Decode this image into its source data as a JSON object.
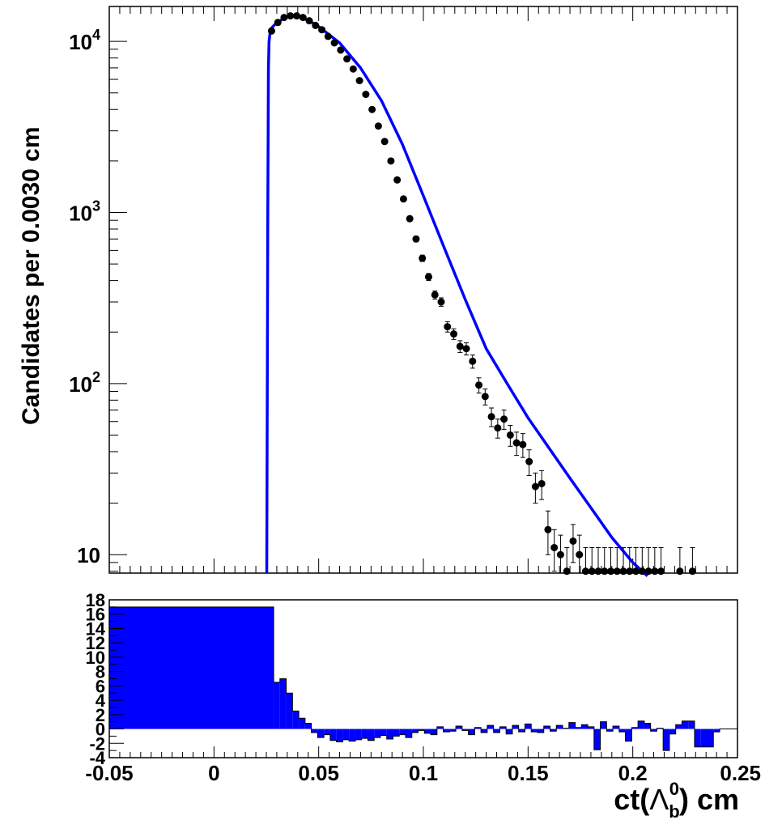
{
  "chart_data": [
    {
      "type": "scatter",
      "ylabel": "Candidates per 0.0030 cm",
      "xlabel": "",
      "y_scale": "log",
      "xlim": [
        -0.05,
        0.25
      ],
      "ylim": [
        7.8,
        16000
      ],
      "y_tick_labels": [
        {
          "base": "10",
          "exp": "4",
          "value": 10000
        },
        {
          "base": "10",
          "exp": "3",
          "value": 1000
        },
        {
          "base": "10",
          "exp": "2",
          "value": 100
        },
        {
          "base": "10",
          "exp": "",
          "value": 10
        }
      ],
      "data_color": "#000000",
      "fit_color": "#0000ff",
      "series": [
        {
          "name": "",
          "kind": "points-with-errors",
          "x": [
            0.0275,
            0.0305,
            0.0335,
            0.0365,
            0.0395,
            0.0425,
            0.0455,
            0.0485,
            0.0515,
            0.0545,
            0.0575,
            0.0605,
            0.0635,
            0.0665,
            0.0695,
            0.0725,
            0.0755,
            0.0785,
            0.0815,
            0.0845,
            0.0875,
            0.0905,
            0.0935,
            0.0965,
            0.0995,
            0.1025,
            0.1055,
            0.1085,
            0.1115,
            0.1145,
            0.1175,
            0.1205,
            0.1235,
            0.1265,
            0.1295,
            0.1325,
            0.1355,
            0.1385,
            0.1415,
            0.1445,
            0.1475,
            0.1505,
            0.1535,
            0.1565,
            0.1595,
            0.1625,
            0.1655,
            0.1685,
            0.1715,
            0.1745,
            0.1775,
            0.1805,
            0.1835,
            0.1865,
            0.1895,
            0.1925,
            0.1955,
            0.1985,
            0.2015,
            0.2045,
            0.2075,
            0.2105,
            0.2135,
            0.2225,
            0.2285
          ],
          "y": [
            11500,
            12900,
            13800,
            14100,
            14100,
            13800,
            13200,
            12400,
            11700,
            10700,
            9800,
            8900,
            7900,
            6900,
            5900,
            4900,
            4000,
            3200,
            2600,
            2000,
            1550,
            1200,
            920,
            700,
            540,
            420,
            330,
            300,
            215,
            195,
            165,
            160,
            135,
            98,
            84,
            64,
            55,
            62,
            50,
            45,
            44,
            35,
            25,
            26,
            14,
            11,
            10,
            8,
            12,
            10,
            8,
            8,
            8,
            8,
            8,
            8,
            8,
            8,
            8,
            8,
            8,
            8,
            8,
            8,
            8
          ],
          "y_err": [
            107,
            114,
            117,
            119,
            119,
            117,
            115,
            111,
            108,
            103,
            99,
            94,
            89,
            83,
            77,
            70,
            63,
            57,
            51,
            45,
            39,
            35,
            30,
            26,
            23,
            20,
            18,
            17,
            15,
            14,
            13,
            13,
            12,
            10,
            9,
            8,
            7,
            8,
            7,
            7,
            7,
            6,
            5,
            5,
            4,
            3,
            3,
            3,
            3,
            3,
            3,
            3,
            3,
            3,
            3,
            3,
            3,
            3,
            3,
            3,
            3,
            3,
            3,
            3,
            3
          ]
        },
        {
          "name": "",
          "kind": "fit-line",
          "x": [
            0.0252,
            0.0257,
            0.026,
            0.0263,
            0.027,
            0.03,
            0.035,
            0.038,
            0.04,
            0.045,
            0.05,
            0.06,
            0.07,
            0.08,
            0.09,
            0.1,
            0.11,
            0.12,
            0.13,
            0.14,
            0.15,
            0.16,
            0.17,
            0.18,
            0.19,
            0.2,
            0.205,
            0.207
          ],
          "y": [
            7.8,
            1000,
            7000,
            10000,
            11800,
            12900,
            13950,
            14150,
            14000,
            13300,
            12200,
            9800,
            7000,
            4500,
            2500,
            1250,
            620,
            310,
            160,
            100,
            63,
            42,
            28,
            18.8,
            12.6,
            9.0,
            7.9,
            7.5
          ]
        }
      ]
    },
    {
      "type": "bar",
      "subtype": "ratio-histogram",
      "xlabel": "ct(Λ₀ᵇ) cm",
      "xlabel_parts": {
        "prefix": "ct(",
        "symbol": "Λ",
        "sub": "b",
        "sup": "0",
        "suffix": ") cm"
      },
      "xlim": [
        -0.05,
        0.25
      ],
      "ylim": [
        -4,
        18
      ],
      "x_tick_labels": [
        "-0.05",
        "0",
        "0.05",
        "0.1",
        "0.15",
        "0.2",
        "0.25"
      ],
      "x_tick_values": [
        -0.05,
        0,
        0.05,
        0.1,
        0.15,
        0.2,
        0.25
      ],
      "y_tick_labels": [
        "18",
        "16",
        "14",
        "12",
        "10",
        "8",
        "6",
        "4",
        "2",
        "0",
        "-2",
        "-4"
      ],
      "y_tick_values": [
        18,
        16,
        14,
        12,
        10,
        8,
        6,
        4,
        2,
        0,
        -2,
        -4
      ],
      "fill_color": "#0000ff",
      "bin_width": 0.003,
      "bins": [
        {
          "x0": -0.05,
          "x1": 0.0285,
          "value": 17.0
        },
        {
          "x0": 0.0285,
          "x1": 0.0315,
          "value": 6.5
        },
        {
          "x0": 0.0315,
          "x1": 0.0345,
          "value": 7.0
        },
        {
          "x0": 0.0345,
          "x1": 0.0375,
          "value": 5.0
        },
        {
          "x0": 0.0375,
          "x1": 0.0405,
          "value": 2.5
        },
        {
          "x0": 0.0405,
          "x1": 0.0435,
          "value": 1.5
        },
        {
          "x0": 0.0435,
          "x1": 0.0465,
          "value": 0.8
        },
        {
          "x0": 0.0465,
          "x1": 0.0495,
          "value": -0.5
        },
        {
          "x0": 0.0495,
          "x1": 0.0525,
          "value": -1.2
        },
        {
          "x0": 0.0525,
          "x1": 0.0555,
          "value": -0.8
        },
        {
          "x0": 0.0555,
          "x1": 0.0585,
          "value": -1.6
        },
        {
          "x0": 0.0585,
          "x1": 0.0615,
          "value": -1.8
        },
        {
          "x0": 0.0615,
          "x1": 0.0645,
          "value": -1.5
        },
        {
          "x0": 0.0645,
          "x1": 0.0675,
          "value": -1.7
        },
        {
          "x0": 0.0675,
          "x1": 0.0705,
          "value": -1.5
        },
        {
          "x0": 0.0705,
          "x1": 0.0735,
          "value": -1.3
        },
        {
          "x0": 0.0735,
          "x1": 0.0765,
          "value": -1.6
        },
        {
          "x0": 0.0765,
          "x1": 0.0795,
          "value": -1.2
        },
        {
          "x0": 0.0795,
          "x1": 0.0825,
          "value": -0.9
        },
        {
          "x0": 0.0825,
          "x1": 0.0855,
          "value": -1.4
        },
        {
          "x0": 0.0855,
          "x1": 0.0885,
          "value": -1.0
        },
        {
          "x0": 0.0885,
          "x1": 0.0915,
          "value": -0.8
        },
        {
          "x0": 0.0915,
          "x1": 0.0945,
          "value": -1.2
        },
        {
          "x0": 0.0945,
          "x1": 0.0975,
          "value": -0.5
        },
        {
          "x0": 0.0975,
          "x1": 0.1005,
          "value": -0.2
        },
        {
          "x0": 0.1005,
          "x1": 0.1035,
          "value": -0.6
        },
        {
          "x0": 0.1035,
          "x1": 0.1065,
          "value": -0.8
        },
        {
          "x0": 0.1065,
          "x1": 0.1095,
          "value": 0.3
        },
        {
          "x0": 0.1095,
          "x1": 0.1125,
          "value": -0.4
        },
        {
          "x0": 0.1125,
          "x1": 0.1155,
          "value": -0.3
        },
        {
          "x0": 0.1155,
          "x1": 0.1185,
          "value": 0.4
        },
        {
          "x0": 0.1185,
          "x1": 0.1215,
          "value": -0.2
        },
        {
          "x0": 0.1215,
          "x1": 0.1245,
          "value": -0.8
        },
        {
          "x0": 0.1245,
          "x1": 0.1275,
          "value": 0.2
        },
        {
          "x0": 0.1275,
          "x1": 0.1305,
          "value": -0.5
        },
        {
          "x0": 0.1305,
          "x1": 0.1335,
          "value": 0.5
        },
        {
          "x0": 0.1335,
          "x1": 0.1365,
          "value": -0.5
        },
        {
          "x0": 0.1365,
          "x1": 0.1395,
          "value": 0.3
        },
        {
          "x0": 0.1395,
          "x1": 0.1425,
          "value": -0.7
        },
        {
          "x0": 0.1425,
          "x1": 0.1455,
          "value": 0.5
        },
        {
          "x0": 0.1455,
          "x1": 0.1485,
          "value": -0.4
        },
        {
          "x0": 0.1485,
          "x1": 0.1515,
          "value": 0.7
        },
        {
          "x0": 0.1515,
          "x1": 0.1545,
          "value": -0.4
        },
        {
          "x0": 0.1545,
          "x1": 0.1575,
          "value": -0.5
        },
        {
          "x0": 0.1575,
          "x1": 0.1605,
          "value": 0.4
        },
        {
          "x0": 0.1605,
          "x1": 0.1635,
          "value": -0.3
        },
        {
          "x0": 0.1635,
          "x1": 0.1665,
          "value": 0.5
        },
        {
          "x0": 0.1665,
          "x1": 0.1695,
          "value": 0.1
        },
        {
          "x0": 0.1695,
          "x1": 0.1725,
          "value": 0.9
        },
        {
          "x0": 0.1725,
          "x1": 0.1755,
          "value": 0.2
        },
        {
          "x0": 0.1755,
          "x1": 0.1785,
          "value": 0.6
        },
        {
          "x0": 0.1785,
          "x1": 0.1815,
          "value": 0.3
        },
        {
          "x0": 0.1815,
          "x1": 0.1845,
          "value": -2.9
        },
        {
          "x0": 0.1845,
          "x1": 0.1875,
          "value": 1.0
        },
        {
          "x0": 0.1875,
          "x1": 0.1905,
          "value": -0.3
        },
        {
          "x0": 0.1905,
          "x1": 0.1935,
          "value": 0.4
        },
        {
          "x0": 0.1935,
          "x1": 0.1965,
          "value": -0.4
        },
        {
          "x0": 0.1965,
          "x1": 0.1995,
          "value": -1.7
        },
        {
          "x0": 0.1995,
          "x1": 0.2025,
          "value": 0.2
        },
        {
          "x0": 0.2025,
          "x1": 0.2055,
          "value": 1.1
        },
        {
          "x0": 0.2055,
          "x1": 0.2085,
          "value": 0.8
        },
        {
          "x0": 0.2085,
          "x1": 0.2115,
          "value": -0.3
        },
        {
          "x0": 0.2115,
          "x1": 0.2145,
          "value": 0.1
        },
        {
          "x0": 0.2145,
          "x1": 0.2175,
          "value": -3.0
        },
        {
          "x0": 0.2175,
          "x1": 0.2205,
          "value": -0.7
        },
        {
          "x0": 0.2205,
          "x1": 0.2235,
          "value": 0.6
        },
        {
          "x0": 0.2235,
          "x1": 0.2265,
          "value": 1.1
        },
        {
          "x0": 0.2265,
          "x1": 0.2295,
          "value": 1.1
        },
        {
          "x0": 0.2295,
          "x1": 0.2325,
          "value": -2.5
        },
        {
          "x0": 0.2325,
          "x1": 0.2355,
          "value": -2.5
        },
        {
          "x0": 0.2355,
          "x1": 0.2385,
          "value": -2.5
        },
        {
          "x0": 0.2385,
          "x1": 0.2415,
          "value": -0.4
        },
        {
          "x0": 0.2415,
          "x1": 0.25,
          "value": 0.0
        }
      ]
    }
  ]
}
